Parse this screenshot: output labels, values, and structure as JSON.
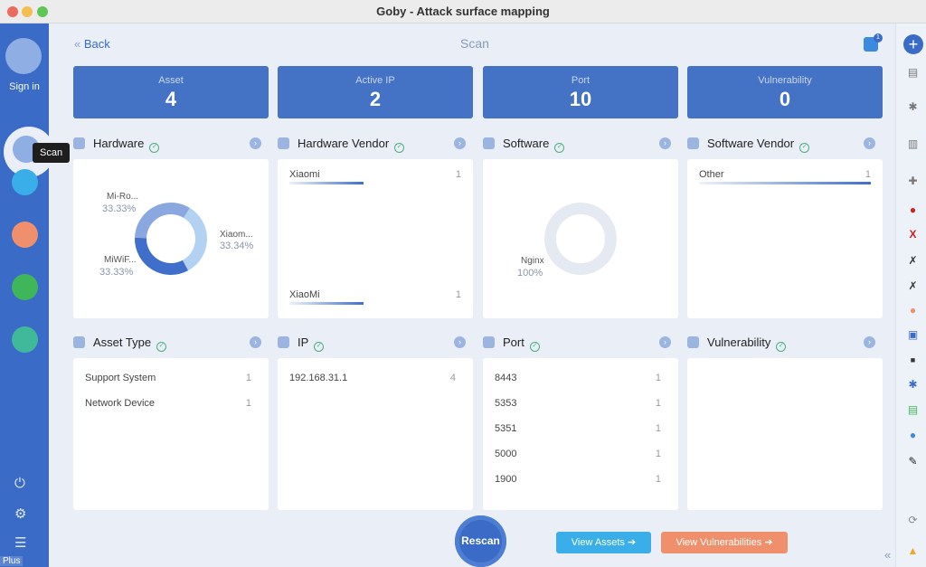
{
  "window": {
    "title": "Goby - Attack surface mapping"
  },
  "sidebar": {
    "sign_in": "Sign in",
    "tooltip": "Scan",
    "plus": "Plus"
  },
  "header": {
    "back": "Back",
    "title": "Scan",
    "notification_count": "1"
  },
  "stats": [
    {
      "label": "Asset",
      "value": "4"
    },
    {
      "label": "Active IP",
      "value": "2"
    },
    {
      "label": "Port",
      "value": "10"
    },
    {
      "label": "Vulnerability",
      "value": "0"
    }
  ],
  "sections": {
    "hardware": {
      "title": "Hardware",
      "slices": [
        {
          "name": "Mi-Ro...",
          "pct": "33.33%",
          "value": 33.33
        },
        {
          "name": "Xiaom...",
          "pct": "33.34%",
          "value": 33.34
        },
        {
          "name": "MiWiF...",
          "pct": "33.33%",
          "value": 33.33
        }
      ]
    },
    "hardware_vendor": {
      "title": "Hardware Vendor",
      "items": [
        {
          "name": "Xiaomi",
          "count": "1"
        },
        {
          "name": "XiaoMi",
          "count": "1"
        }
      ]
    },
    "software": {
      "title": "Software",
      "slices": [
        {
          "name": "Nginx",
          "pct": "100%",
          "value": 100
        }
      ]
    },
    "software_vendor": {
      "title": "Software Vendor",
      "items": [
        {
          "name": "Other",
          "count": "1"
        }
      ]
    },
    "asset_type": {
      "title": "Asset Type",
      "items": [
        {
          "name": "Support System",
          "count": "1"
        },
        {
          "name": "Network Device",
          "count": "1"
        }
      ]
    },
    "ip": {
      "title": "IP",
      "items": [
        {
          "name": "192.168.31.1",
          "count": "4"
        }
      ]
    },
    "port": {
      "title": "Port",
      "items": [
        {
          "name": "8443",
          "count": "1"
        },
        {
          "name": "5353",
          "count": "1"
        },
        {
          "name": "5351",
          "count": "1"
        },
        {
          "name": "5000",
          "count": "1"
        },
        {
          "name": "1900",
          "count": "1"
        }
      ]
    },
    "vulnerability": {
      "title": "Vulnerability",
      "items": []
    }
  },
  "actions": {
    "rescan": "Rescan",
    "view_assets": "View Assets",
    "view_vulnerabilities": "View Vulnerabilities"
  },
  "colors": {
    "primary": "#3a6bc6",
    "card": "#4472c4",
    "assets_btn": "#3aaee8",
    "vuln_btn": "#ef8f6b"
  }
}
